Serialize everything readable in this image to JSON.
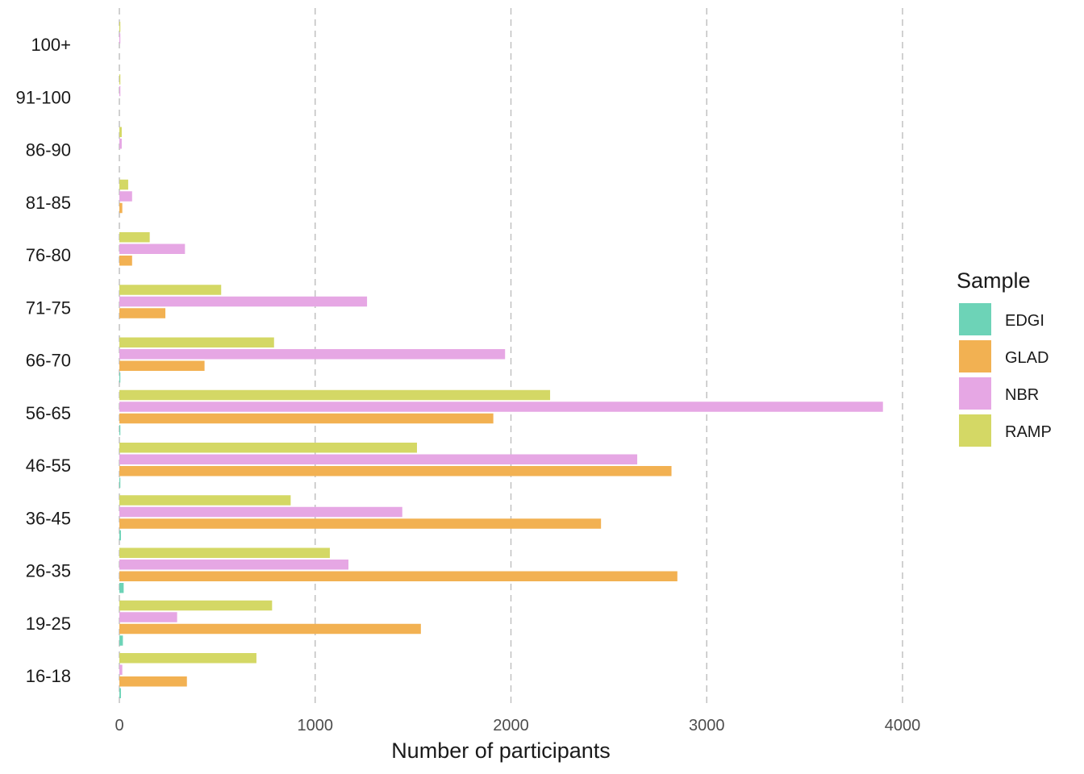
{
  "chart_data": {
    "type": "bar",
    "orientation": "horizontal",
    "title": "",
    "xlabel": "Number of participants",
    "ylabel": "",
    "xlim": [
      0,
      4000
    ],
    "xticks": [
      "0",
      "1000",
      "2000",
      "3000",
      "4000"
    ],
    "grid": "vertical-dashed",
    "categories": [
      "100+",
      "91-100",
      "86-90",
      "81-85",
      "76-80",
      "71-75",
      "66-70",
      "56-65",
      "46-55",
      "36-45",
      "26-35",
      "19-25",
      "16-18"
    ],
    "series": [
      {
        "name": "EDGI",
        "color": "#6dd3b7",
        "values": [
          0,
          0,
          0,
          0,
          0,
          0,
          2,
          2,
          3,
          8,
          22,
          18,
          8
        ]
      },
      {
        "name": "GLAD",
        "color": "#f2b152",
        "values": [
          0,
          0,
          0,
          15,
          65,
          235,
          435,
          1910,
          2820,
          2460,
          2850,
          1540,
          345
        ]
      },
      {
        "name": "NBR",
        "color": "#e6a7e4",
        "values": [
          3,
          5,
          12,
          65,
          335,
          1265,
          1970,
          3900,
          2645,
          1445,
          1170,
          295,
          15
        ]
      },
      {
        "name": "RAMP",
        "color": "#d4d865",
        "values": [
          3,
          5,
          12,
          45,
          155,
          520,
          790,
          2200,
          1520,
          875,
          1075,
          780,
          700
        ]
      }
    ],
    "legend": {
      "title": "Sample",
      "position": "right"
    }
  }
}
